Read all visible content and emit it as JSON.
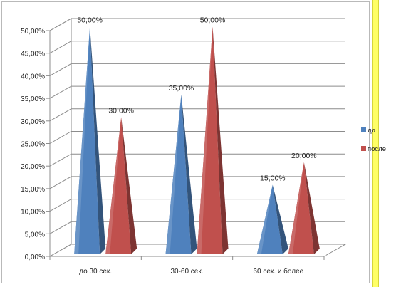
{
  "chart_data": {
    "type": "bar",
    "style": "3d-pyramid",
    "categories": [
      "до 30 сек.",
      "30-60 сек.",
      "60 сек. и более"
    ],
    "series": [
      {
        "name": "до",
        "color": "#4f81bd",
        "values": [
          50,
          35,
          15
        ],
        "labels": [
          "50,00%",
          "35,00%",
          "15,00%"
        ]
      },
      {
        "name": "после",
        "color": "#c0504d",
        "values": [
          30,
          50,
          20
        ],
        "labels": [
          "30,00%",
          "50,00%",
          "20,00%"
        ]
      }
    ],
    "ylim": [
      0,
      50
    ],
    "yticks": [
      "0,00%",
      "5,00%",
      "10,00%",
      "15,00%",
      "20,00%",
      "25,00%",
      "30,00%",
      "35,00%",
      "40,00%",
      "45,00%",
      "50,00%"
    ],
    "grid": true,
    "legend_position": "right"
  }
}
